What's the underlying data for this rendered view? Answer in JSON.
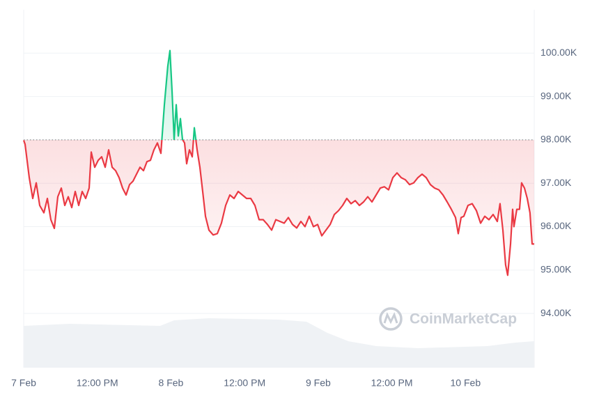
{
  "chart_data": {
    "type": "line",
    "watermark": "CoinMarketCap",
    "x": [
      0,
      0.23,
      0.91,
      1.48,
      2.04,
      2.61,
      3.29,
      3.86,
      4.43,
      4.99,
      5.56,
      6.13,
      6.7,
      7.26,
      7.83,
      8.4,
      8.97,
      9.53,
      10.1,
      10.67,
      11.01,
      11.58,
      12.15,
      12.71,
      13.28,
      13.85,
      14.42,
      14.98,
      15.55,
      16.12,
      16.68,
      17.25,
      17.82,
      18.39,
      18.95,
      19.52,
      20.09,
      20.66,
      21.22,
      21.79,
      22.36,
      22.93,
      23.49,
      23.84,
      24.18,
      24.52,
      24.86,
      25.2,
      25.54,
      25.88,
      26.22,
      26.56,
      27.01,
      27.47,
      27.81,
      28.26,
      28.72,
      29.17,
      29.63,
      30.19,
      30.87,
      31.55,
      32.23,
      32.92,
      33.6,
      34.28,
      34.96,
      35.64,
      36.32,
      37,
      37.68,
      38.36,
      39.04,
      39.73,
      40.41,
      41.09,
      41.77,
      42.45,
      43.13,
      43.81,
      44.49,
      45.17,
      45.85,
      46.54,
      47.22,
      47.9,
      48.58,
      49.26,
      49.94,
      50.62,
      51.3,
      51.98,
      52.66,
      53.35,
      54.03,
      54.71,
      55.39,
      56.07,
      56.75,
      57.43,
      58.11,
      58.79,
      59.47,
      60.16,
      60.84,
      61.52,
      62.2,
      62.88,
      63.56,
      64.24,
      64.92,
      65.6,
      66.28,
      66.97,
      67.65,
      68.33,
      69.01,
      69.69,
      70.37,
      70.82,
      71.28,
      71.73,
      72.41,
      73.09,
      73.78,
      74.46,
      75.14,
      75.82,
      76.5,
      77.18,
      77.63,
      78.09,
      78.54,
      78.88,
      79.34,
      79.68,
      79.9,
      80.36,
      80.81,
      81.15,
      81.61,
      82.06,
      82.51,
      82.86,
      83.2
    ],
    "values": [
      97990,
      97900,
      97130,
      96650,
      97010,
      96490,
      96320,
      96650,
      96160,
      95960,
      96690,
      96890,
      96490,
      96690,
      96440,
      96810,
      96490,
      96810,
      96650,
      96890,
      97720,
      97370,
      97530,
      97610,
      97370,
      97770,
      97370,
      97290,
      97130,
      96890,
      96730,
      96970,
      97050,
      97210,
      97370,
      97290,
      97500,
      97530,
      97770,
      97930,
      97690,
      98810,
      99700,
      100060,
      99130,
      98010,
      98810,
      98090,
      98490,
      98010,
      97930,
      97450,
      97770,
      97610,
      98280,
      97770,
      97370,
      96810,
      96240,
      95920,
      95810,
      95840,
      96080,
      96490,
      96730,
      96650,
      96810,
      96730,
      96650,
      96650,
      96490,
      96160,
      96160,
      96050,
      95920,
      96160,
      96120,
      96080,
      96210,
      96050,
      95970,
      96120,
      96000,
      96240,
      96000,
      96050,
      95790,
      95920,
      96050,
      96280,
      96370,
      96490,
      96650,
      96530,
      96600,
      96490,
      96570,
      96690,
      96570,
      96730,
      96890,
      96920,
      96850,
      97130,
      97240,
      97130,
      97080,
      96970,
      97010,
      97130,
      97210,
      97130,
      96970,
      96890,
      96850,
      96730,
      96570,
      96400,
      96210,
      95840,
      96210,
      96240,
      96490,
      96530,
      96370,
      96080,
      96240,
      96160,
      96280,
      96120,
      96530,
      95920,
      95120,
      94880,
      95600,
      96400,
      96000,
      96400,
      96400,
      97010,
      96890,
      96650,
      96320,
      95600,
      95600
    ],
    "baseline": 98000,
    "colors": {
      "above": "#16c784",
      "below": "#ea3943"
    },
    "xlim": [
      0,
      83.2
    ],
    "xticks": [
      {
        "value": 0,
        "label": "7 Feb"
      },
      {
        "value": 12,
        "label": "12:00 PM"
      },
      {
        "value": 24,
        "label": "8 Feb"
      },
      {
        "value": 36,
        "label": "12:00 PM"
      },
      {
        "value": 48,
        "label": "9 Feb"
      },
      {
        "value": 60,
        "label": "12:00 PM"
      },
      {
        "value": 72,
        "label": "10 Feb"
      }
    ],
    "ylim": [
      92750,
      101000
    ],
    "yticks": [
      {
        "value": 94000,
        "label": "94.00K"
      },
      {
        "value": 95000,
        "label": "95.00K"
      },
      {
        "value": 96000,
        "label": "96.00K"
      },
      {
        "value": 97000,
        "label": "97.00K"
      },
      {
        "value": 98000,
        "label": "98.00K"
      },
      {
        "value": 99000,
        "label": "99.00K"
      },
      {
        "value": 100000,
        "label": "100.00K"
      }
    ],
    "grid": true
  }
}
